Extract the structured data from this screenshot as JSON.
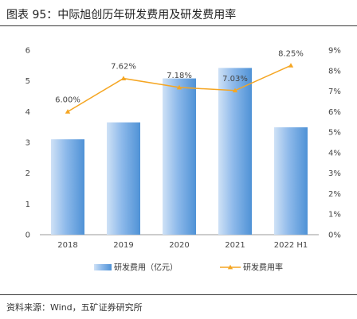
{
  "header": {
    "title": "图表 95：中际旭创历年研发费用及研发费用率"
  },
  "footer": {
    "source": "资料来源：Wind，五矿证券研究所"
  },
  "colors": {
    "bar_light": "#cfe1f6",
    "bar_dark": "#4f92d6",
    "line": "#f5a623",
    "text": "#444444",
    "rule": "#3a3a3a"
  },
  "chart_data": {
    "type": "bar",
    "categories": [
      "2018",
      "2019",
      "2020",
      "2021",
      "2022 H1"
    ],
    "series": [
      {
        "name": "研发费用（亿元）",
        "type": "bar",
        "axis": "left",
        "values": [
          3.1,
          3.65,
          5.08,
          5.42,
          3.49
        ]
      },
      {
        "name": "研发费用率",
        "type": "line",
        "axis": "right",
        "values": [
          6.0,
          7.62,
          7.18,
          7.03,
          8.25
        ],
        "labels": [
          "6.00%",
          "7.62%",
          "7.18%",
          "7.03%",
          "8.25%"
        ]
      }
    ],
    "left_axis": {
      "ylim": [
        0,
        6
      ],
      "ticks": [
        "0",
        "1",
        "2",
        "3",
        "4",
        "5",
        "6"
      ]
    },
    "right_axis": {
      "ylim": [
        0,
        9
      ],
      "ticks": [
        "0%",
        "1%",
        "2%",
        "3%",
        "4%",
        "5%",
        "6%",
        "7%",
        "8%",
        "9%"
      ]
    },
    "legend": {
      "position": "bottom",
      "entries": [
        "研发费用（亿元）",
        "研发费用率"
      ]
    },
    "grid": false
  }
}
